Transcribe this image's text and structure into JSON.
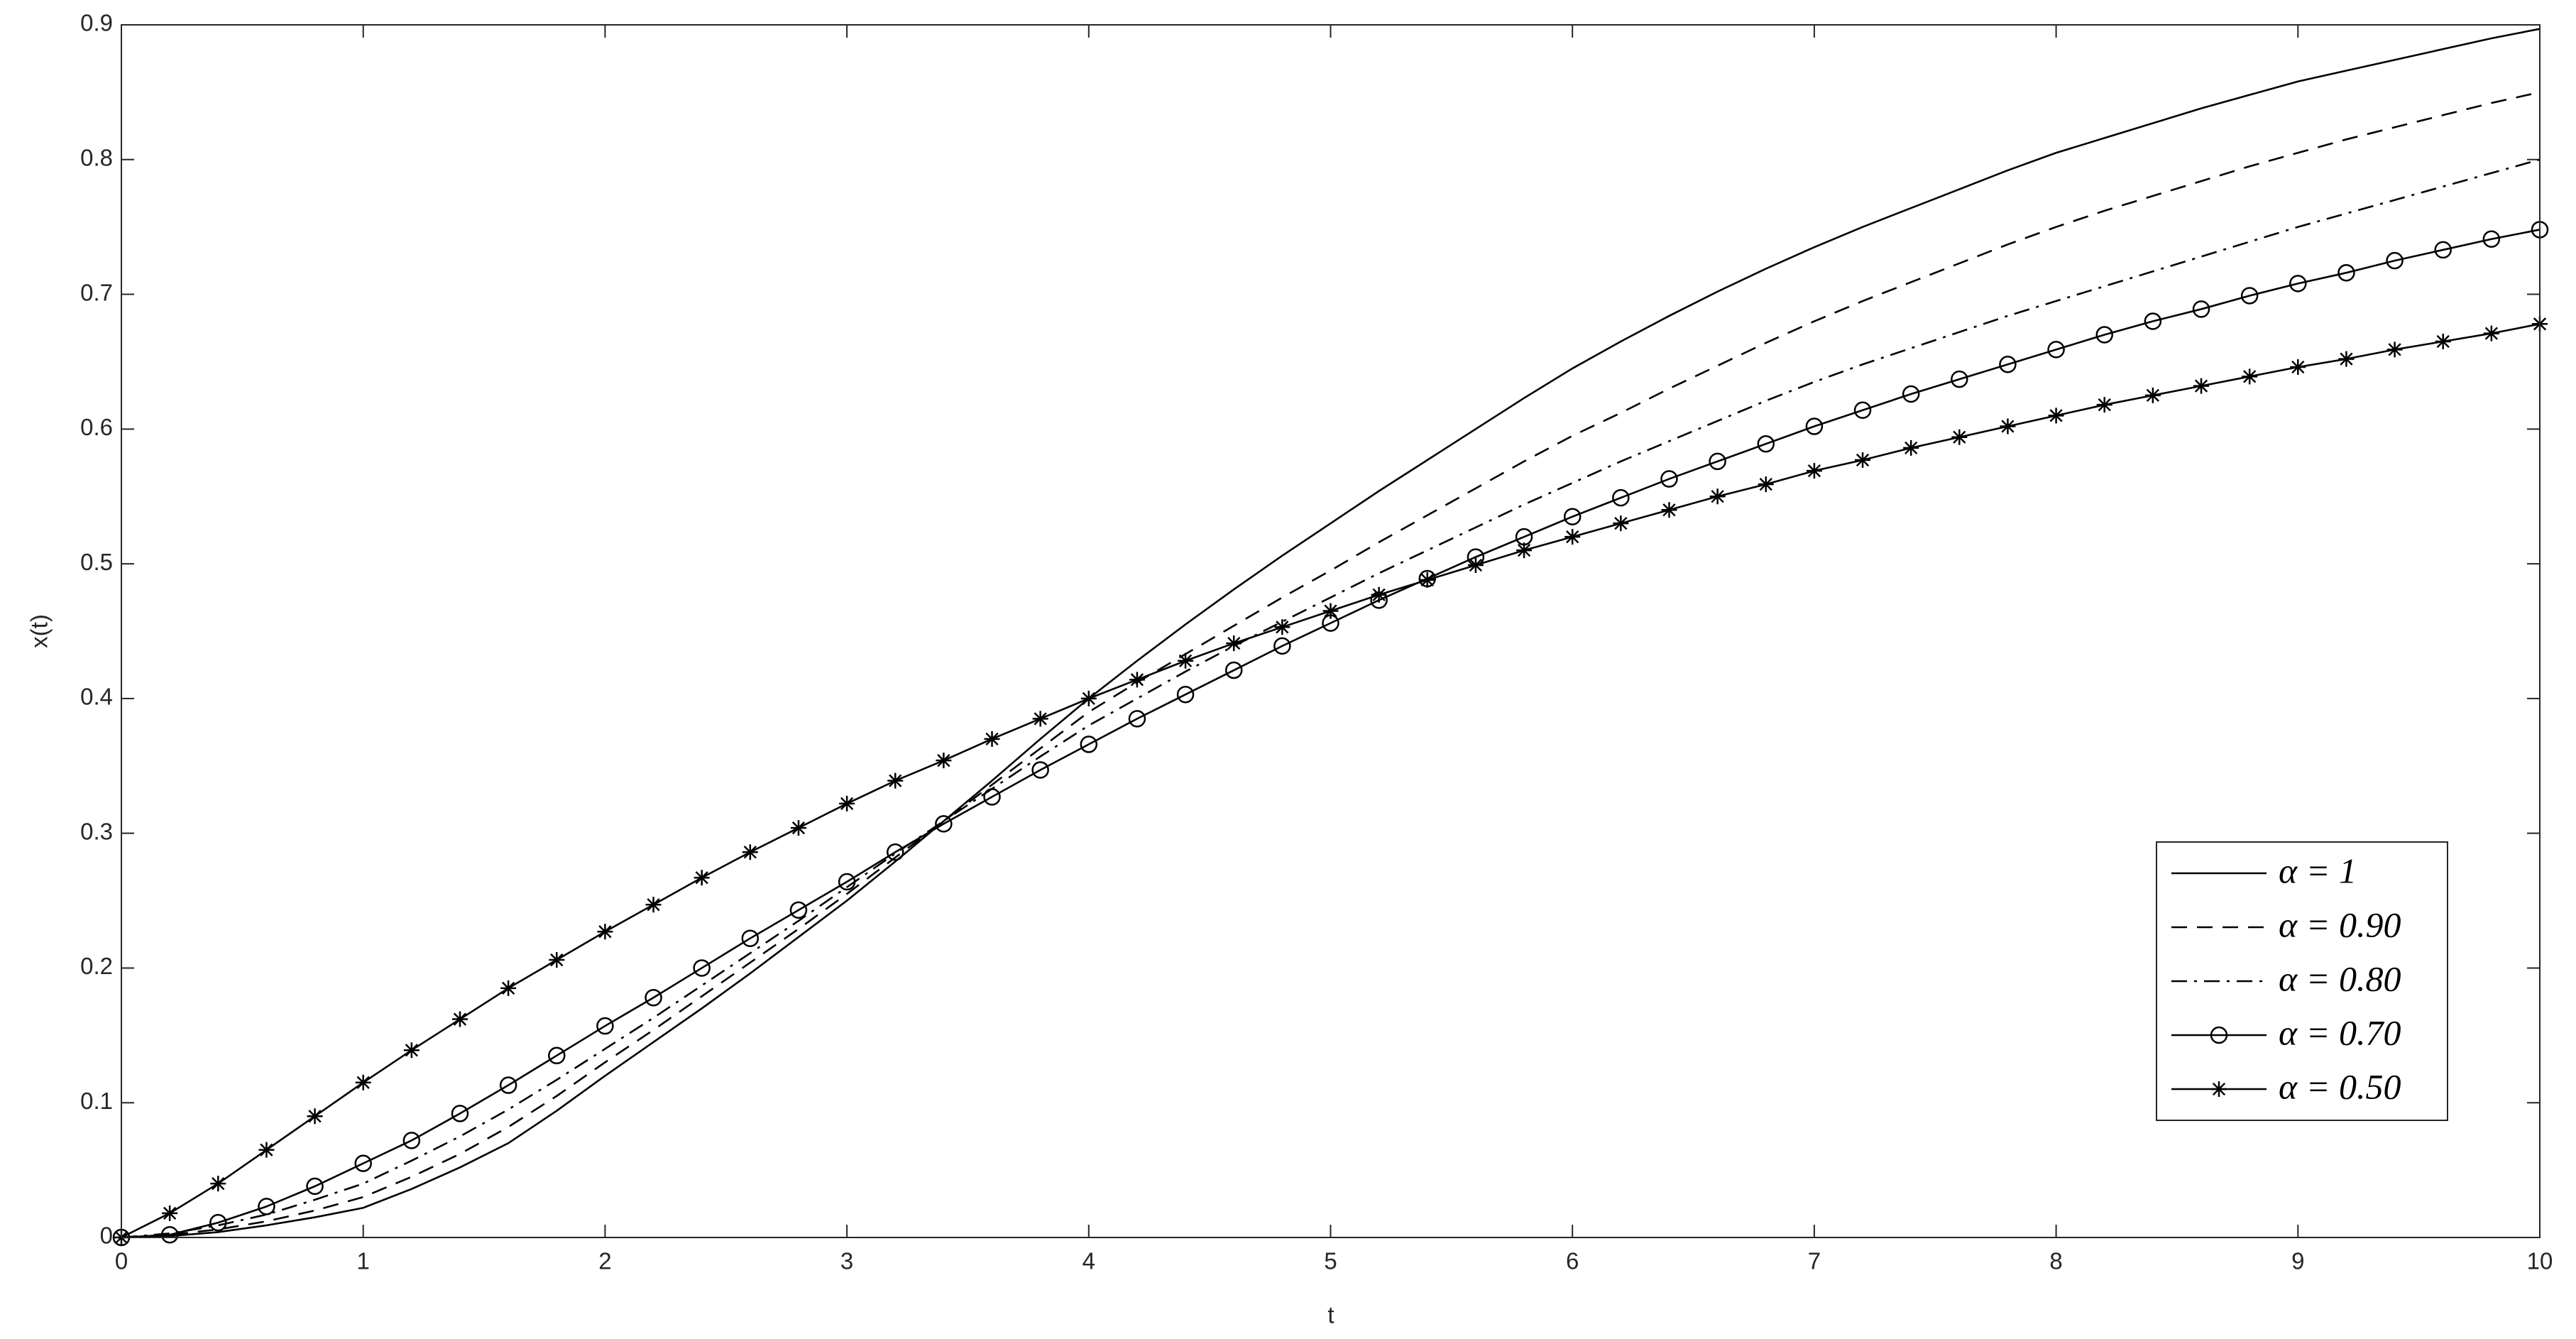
{
  "chart_data": {
    "type": "line",
    "xlabel": "t",
    "ylabel": "x(t)",
    "x": [
      0,
      0.2,
      0.4,
      0.6,
      0.8,
      1,
      1.2,
      1.4,
      1.6,
      1.8,
      2,
      2.2,
      2.4,
      2.6,
      2.8,
      3,
      3.2,
      3.4,
      3.6,
      3.8,
      4,
      4.2,
      4.4,
      4.6,
      4.8,
      5,
      5.2,
      5.4,
      5.6,
      5.8,
      6,
      6.2,
      6.4,
      6.6,
      6.8,
      7,
      7.2,
      7.4,
      7.6,
      7.8,
      8,
      8.2,
      8.4,
      8.6,
      8.8,
      9,
      9.2,
      9.4,
      9.6,
      9.8,
      10
    ],
    "series": [
      {
        "name": "α = 1",
        "color": "#000000",
        "dash": "solid",
        "values": [
          0,
          0.001,
          0.004,
          0.009,
          0.015,
          0.022,
          0.036,
          0.052,
          0.07,
          0.094,
          0.12,
          0.145,
          0.17,
          0.196,
          0.223,
          0.25,
          0.279,
          0.309,
          0.339,
          0.37,
          0.4,
          0.428,
          0.455,
          0.481,
          0.506,
          0.53,
          0.554,
          0.577,
          0.6,
          0.623,
          0.645,
          0.665,
          0.684,
          0.702,
          0.719,
          0.735,
          0.75,
          0.764,
          0.778,
          0.792,
          0.805,
          0.816,
          0.827,
          0.838,
          0.848,
          0.858,
          0.866,
          0.874,
          0.882,
          0.89,
          0.897
        ]
      },
      {
        "name": "α = 0.90",
        "color": "#000000",
        "dash": "dashed",
        "values": [
          0,
          0.002,
          0.006,
          0.012,
          0.02,
          0.03,
          0.045,
          0.062,
          0.082,
          0.105,
          0.13,
          0.154,
          0.179,
          0.204,
          0.229,
          0.255,
          0.282,
          0.309,
          0.336,
          0.363,
          0.39,
          0.412,
          0.433,
          0.454,
          0.475,
          0.495,
          0.516,
          0.536,
          0.556,
          0.576,
          0.595,
          0.612,
          0.63,
          0.647,
          0.664,
          0.68,
          0.695,
          0.709,
          0.723,
          0.737,
          0.75,
          0.762,
          0.773,
          0.784,
          0.795,
          0.805,
          0.815,
          0.824,
          0.833,
          0.842,
          0.85
        ]
      },
      {
        "name": "α = 0.80",
        "color": "#000000",
        "dash": "dashdot",
        "values": [
          0,
          0.003,
          0.009,
          0.017,
          0.028,
          0.04,
          0.057,
          0.075,
          0.095,
          0.117,
          0.14,
          0.163,
          0.187,
          0.211,
          0.235,
          0.26,
          0.285,
          0.309,
          0.333,
          0.357,
          0.38,
          0.4,
          0.42,
          0.439,
          0.457,
          0.475,
          0.493,
          0.51,
          0.527,
          0.544,
          0.56,
          0.576,
          0.591,
          0.606,
          0.621,
          0.635,
          0.648,
          0.66,
          0.672,
          0.684,
          0.695,
          0.706,
          0.717,
          0.728,
          0.739,
          0.75,
          0.76,
          0.77,
          0.78,
          0.79,
          0.8
        ]
      },
      {
        "name": "α = 0.70",
        "color": "#000000",
        "dash": "solid",
        "marker": "circle",
        "values": [
          0,
          0.002,
          0.011,
          0.023,
          0.038,
          0.055,
          0.072,
          0.092,
          0.113,
          0.135,
          0.157,
          0.178,
          0.2,
          0.222,
          0.243,
          0.264,
          0.286,
          0.307,
          0.327,
          0.347,
          0.366,
          0.385,
          0.403,
          0.421,
          0.439,
          0.456,
          0.473,
          0.489,
          0.505,
          0.52,
          0.535,
          0.549,
          0.563,
          0.576,
          0.589,
          0.602,
          0.614,
          0.626,
          0.637,
          0.648,
          0.659,
          0.67,
          0.68,
          0.689,
          0.699,
          0.708,
          0.716,
          0.725,
          0.733,
          0.741,
          0.748
        ]
      },
      {
        "name": "α = 0.50",
        "color": "#000000",
        "dash": "solid",
        "marker": "star",
        "values": [
          0,
          0.018,
          0.04,
          0.065,
          0.09,
          0.115,
          0.139,
          0.162,
          0.185,
          0.206,
          0.227,
          0.247,
          0.267,
          0.286,
          0.304,
          0.322,
          0.339,
          0.354,
          0.37,
          0.385,
          0.4,
          0.414,
          0.428,
          0.441,
          0.453,
          0.465,
          0.477,
          0.488,
          0.499,
          0.51,
          0.52,
          0.53,
          0.54,
          0.55,
          0.559,
          0.569,
          0.577,
          0.586,
          0.594,
          0.602,
          0.61,
          0.618,
          0.625,
          0.632,
          0.639,
          0.646,
          0.652,
          0.659,
          0.665,
          0.671,
          0.678
        ]
      }
    ],
    "xlim": [
      0,
      10
    ],
    "xticks": [
      0,
      1,
      2,
      3,
      4,
      5,
      6,
      7,
      8,
      9,
      10
    ],
    "ylim": [
      0,
      0.9
    ],
    "yticks": [
      0,
      0.1,
      0.2,
      0.3,
      0.4,
      0.5,
      0.6,
      0.7,
      0.8,
      0.9
    ],
    "legend": "lower right"
  }
}
